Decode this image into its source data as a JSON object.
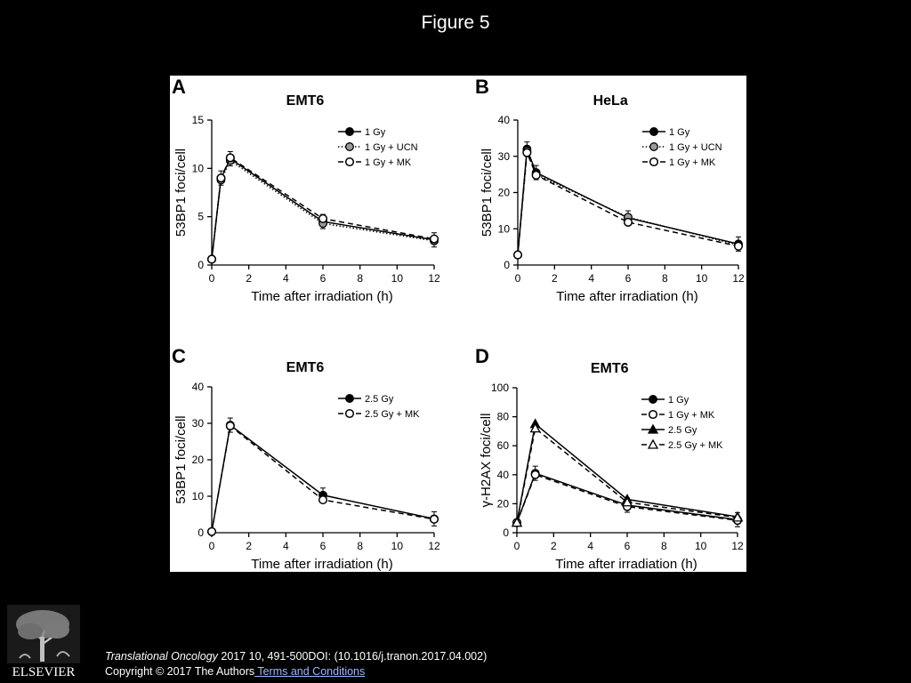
{
  "figure_title": "Figure 5",
  "footer": {
    "journal": "Translational Oncology",
    "citation_rest": " 2017 10, 491-500DOI: (10.1016/j.tranon.2017.04.002)",
    "copyright": "Copyright © 2017 The Authors",
    "terms_link": " Terms and Conditions",
    "publisher_logo_text": "ELSEVIER"
  },
  "colors": {
    "background": "#000000",
    "panel_background": "#ffffff",
    "ink": "#000000"
  },
  "chart_data": [
    {
      "type": "line",
      "panel": "A",
      "title": "EMT6",
      "xlabel": "Time after irradiation (h)",
      "ylabel": "53BP1 foci/cell",
      "xlim": [
        0,
        12
      ],
      "ylim": [
        0,
        15
      ],
      "xticks": [
        0,
        2,
        4,
        6,
        8,
        10,
        12
      ],
      "yticks": [
        0,
        5,
        10,
        15
      ],
      "legend_position": "top-right",
      "x": [
        0,
        0.5,
        1,
        6,
        12
      ],
      "series": [
        {
          "name": "1 Gy",
          "values": [
            0.6,
            9.0,
            11.0,
            4.5,
            2.6
          ],
          "style": "solid",
          "marker": "filled-circle"
        },
        {
          "name": "1 Gy + UCN",
          "values": [
            0.6,
            8.8,
            10.8,
            4.3,
            2.5
          ],
          "style": "dotted",
          "marker": "gray-circle"
        },
        {
          "name": "1 Gy + MK",
          "values": [
            0.6,
            9.0,
            11.1,
            4.8,
            2.7
          ],
          "style": "dashed",
          "marker": "open-circle"
        }
      ]
    },
    {
      "type": "line",
      "panel": "B",
      "title": "HeLa",
      "xlabel": "Time after irradiation (h)",
      "ylabel": "53BP1 foci/cell",
      "xlim": [
        0,
        12
      ],
      "ylim": [
        0,
        40
      ],
      "xticks": [
        0,
        2,
        4,
        6,
        8,
        10,
        12
      ],
      "yticks": [
        0,
        10,
        20,
        30,
        40
      ],
      "legend_position": "top-right",
      "x": [
        0,
        0.5,
        1,
        6,
        12
      ],
      "series": [
        {
          "name": "1 Gy",
          "values": [
            2.8,
            32.0,
            25.5,
            13.0,
            5.8
          ],
          "style": "solid",
          "marker": "filled-circle"
        },
        {
          "name": "1 Gy + UCN",
          "values": [
            2.8,
            31.5,
            25.0,
            13.2,
            5.5
          ],
          "style": "dotted",
          "marker": "gray-circle"
        },
        {
          "name": "1 Gy + MK",
          "values": [
            2.8,
            31.0,
            24.8,
            11.8,
            5.2
          ],
          "style": "dashed",
          "marker": "open-circle"
        }
      ]
    },
    {
      "type": "line",
      "panel": "C",
      "title": "EMT6",
      "xlabel": "Time after irradiation (h)",
      "ylabel": "53BP1 foci/cell",
      "xlim": [
        0,
        12
      ],
      "ylim": [
        0,
        40
      ],
      "xticks": [
        0,
        2,
        4,
        6,
        8,
        10,
        12
      ],
      "yticks": [
        0,
        10,
        20,
        30,
        40
      ],
      "legend_position": "top-right",
      "x": [
        0,
        1,
        6,
        12
      ],
      "series": [
        {
          "name": "2.5 Gy",
          "values": [
            0.3,
            29.5,
            10.3,
            3.8
          ],
          "style": "solid",
          "marker": "filled-circle"
        },
        {
          "name": "2.5 Gy + MK",
          "values": [
            0.3,
            29.3,
            9.0,
            3.7
          ],
          "style": "dashed",
          "marker": "open-circle"
        }
      ]
    },
    {
      "type": "line",
      "panel": "D",
      "title": "EMT6",
      "xlabel": "Time after irradiation (h)",
      "ylabel": "γ-H2AX foci/cell",
      "xlim": [
        0,
        12
      ],
      "ylim": [
        0,
        100
      ],
      "xticks": [
        0,
        2,
        4,
        6,
        8,
        10,
        12
      ],
      "yticks": [
        0,
        20,
        40,
        60,
        80,
        100
      ],
      "legend_position": "top-right",
      "x": [
        0,
        1,
        6,
        12
      ],
      "series": [
        {
          "name": "1 Gy",
          "values": [
            7,
            41,
            19,
            9
          ],
          "style": "solid",
          "marker": "filled-circle"
        },
        {
          "name": "1 Gy + MK",
          "values": [
            7,
            40,
            18,
            8.5
          ],
          "style": "dashed",
          "marker": "open-circle"
        },
        {
          "name": "2.5 Gy",
          "values": [
            7,
            75,
            23,
            11
          ],
          "style": "solid",
          "marker": "filled-triangle"
        },
        {
          "name": "2.5 Gy + MK",
          "values": [
            7,
            72,
            21,
            10.5
          ],
          "style": "dashed",
          "marker": "open-triangle"
        }
      ]
    }
  ]
}
